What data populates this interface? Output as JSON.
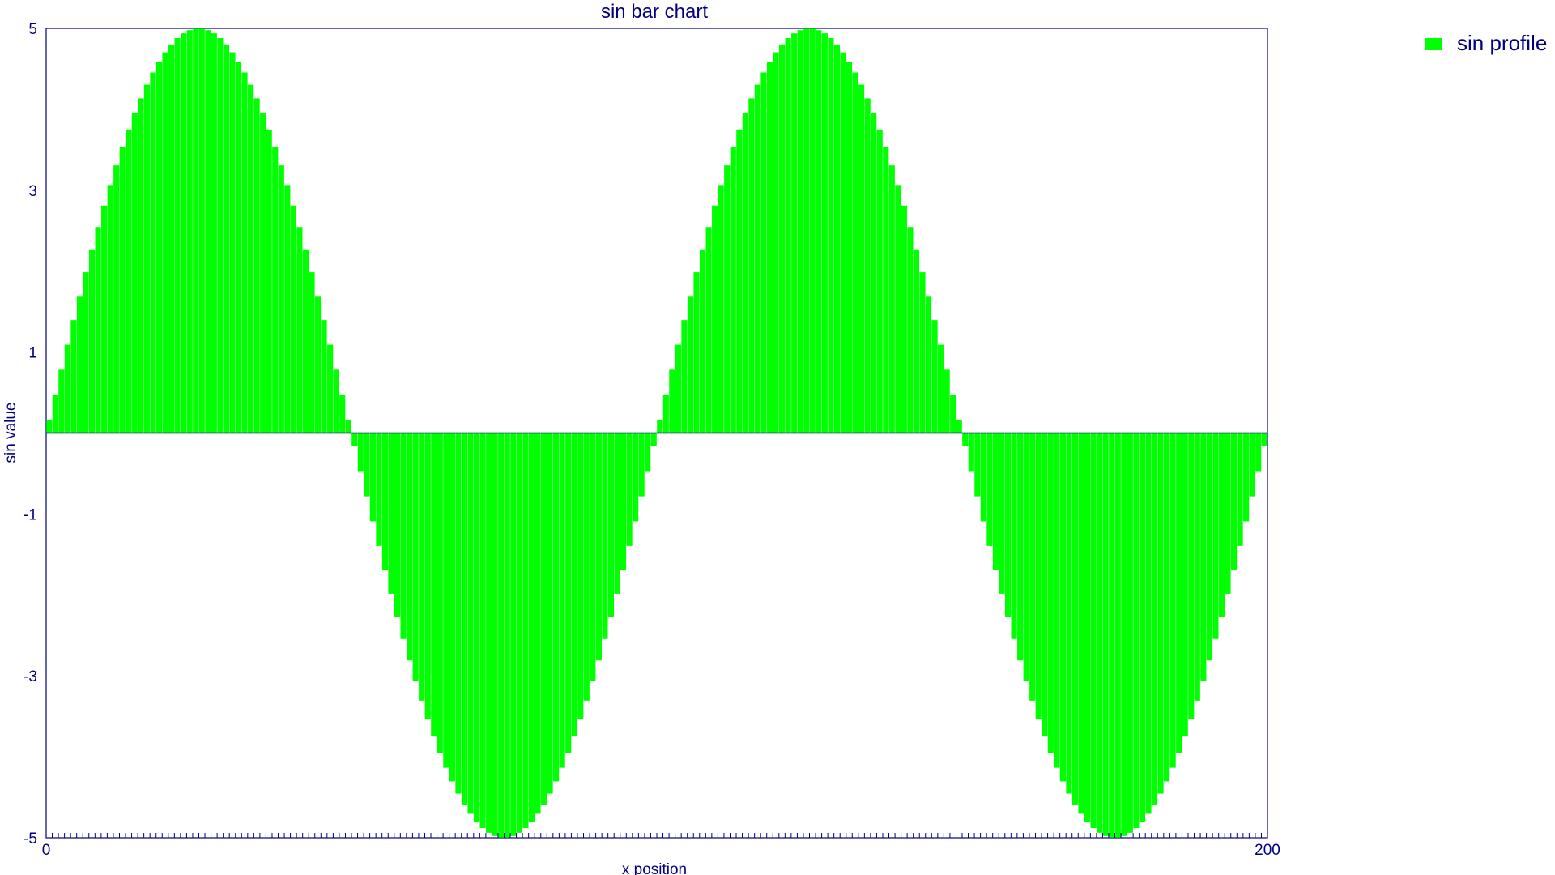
{
  "chart_data": {
    "type": "bar",
    "title": "sin bar chart",
    "xlabel": "x position",
    "ylabel": "sin value",
    "ylim": [
      -5,
      5
    ],
    "y_ticks": [
      5,
      3,
      1,
      -1,
      -3,
      -5
    ],
    "x_range": [
      0,
      200
    ],
    "x_tick_first": "0",
    "x_tick_last": "200",
    "bar_count": 200,
    "amplitude": 5,
    "periods": 2,
    "series": [
      {
        "name": "sin profile",
        "color": "#00ff00"
      }
    ],
    "grid": false,
    "legend_position": "top-right",
    "axis_color": "#000080"
  }
}
